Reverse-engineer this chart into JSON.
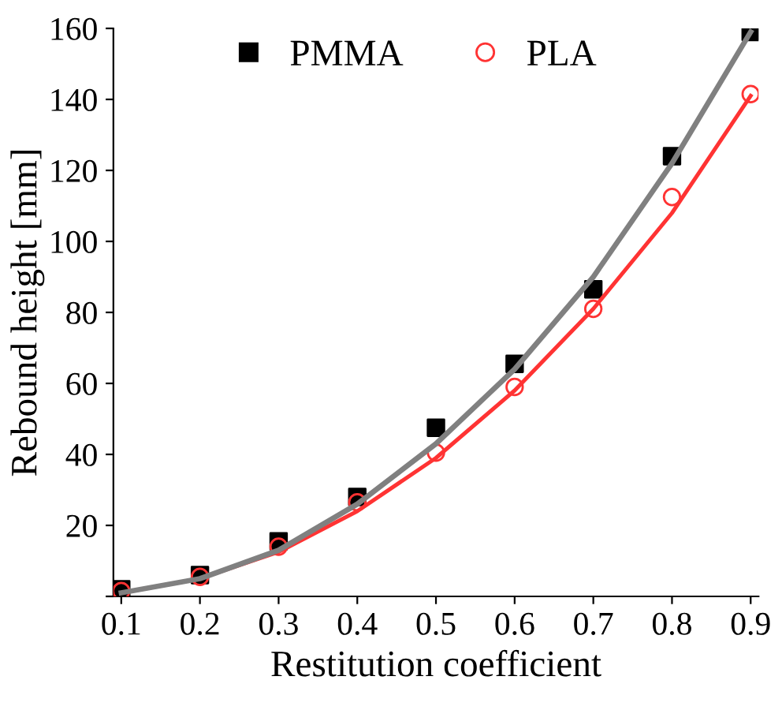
{
  "chart_data": {
    "type": "scatter",
    "xlabel": "Restitution coefficient",
    "ylabel": "Rebound height [mm]",
    "x": [
      0.1,
      0.2,
      0.3,
      0.4,
      0.5,
      0.6,
      0.7,
      0.8,
      0.9
    ],
    "series": [
      {
        "name": "PMMA",
        "color": "#000000",
        "marker": "square",
        "values": [
          2,
          6,
          15.5,
          28,
          47.5,
          65.5,
          86.5,
          124,
          159
        ]
      },
      {
        "name": "PLA",
        "color": "#ff3333",
        "marker": "circle",
        "values": [
          1.5,
          5.5,
          14,
          26.5,
          40.5,
          59,
          81,
          112.5,
          141.5
        ]
      },
      {
        "type": "line",
        "color": "#808080",
        "x": [
          0.1,
          0.2,
          0.3,
          0.4,
          0.5,
          0.6,
          0.7,
          0.8,
          0.9
        ],
        "values": [
          1,
          5,
          13,
          26,
          43,
          64,
          90,
          122,
          159
        ]
      },
      {
        "type": "line",
        "color": "#ff3333",
        "x": [
          0.1,
          0.2,
          0.3,
          0.4,
          0.5,
          0.6,
          0.7,
          0.8,
          0.9
        ],
        "values": [
          1,
          5,
          12.5,
          24,
          39,
          58,
          81,
          108,
          141
        ]
      }
    ],
    "xlim": [
      0.09,
      0.91
    ],
    "ylim": [
      0,
      160
    ],
    "xticks": [
      0.1,
      0.2,
      0.3,
      0.4,
      0.5,
      0.6,
      0.7,
      0.8,
      0.9
    ],
    "yticks": [
      {
        "value": 0,
        "label": null
      },
      20,
      40,
      60,
      80,
      100,
      120,
      140,
      160
    ],
    "legend": "top left",
    "grid": false
  }
}
